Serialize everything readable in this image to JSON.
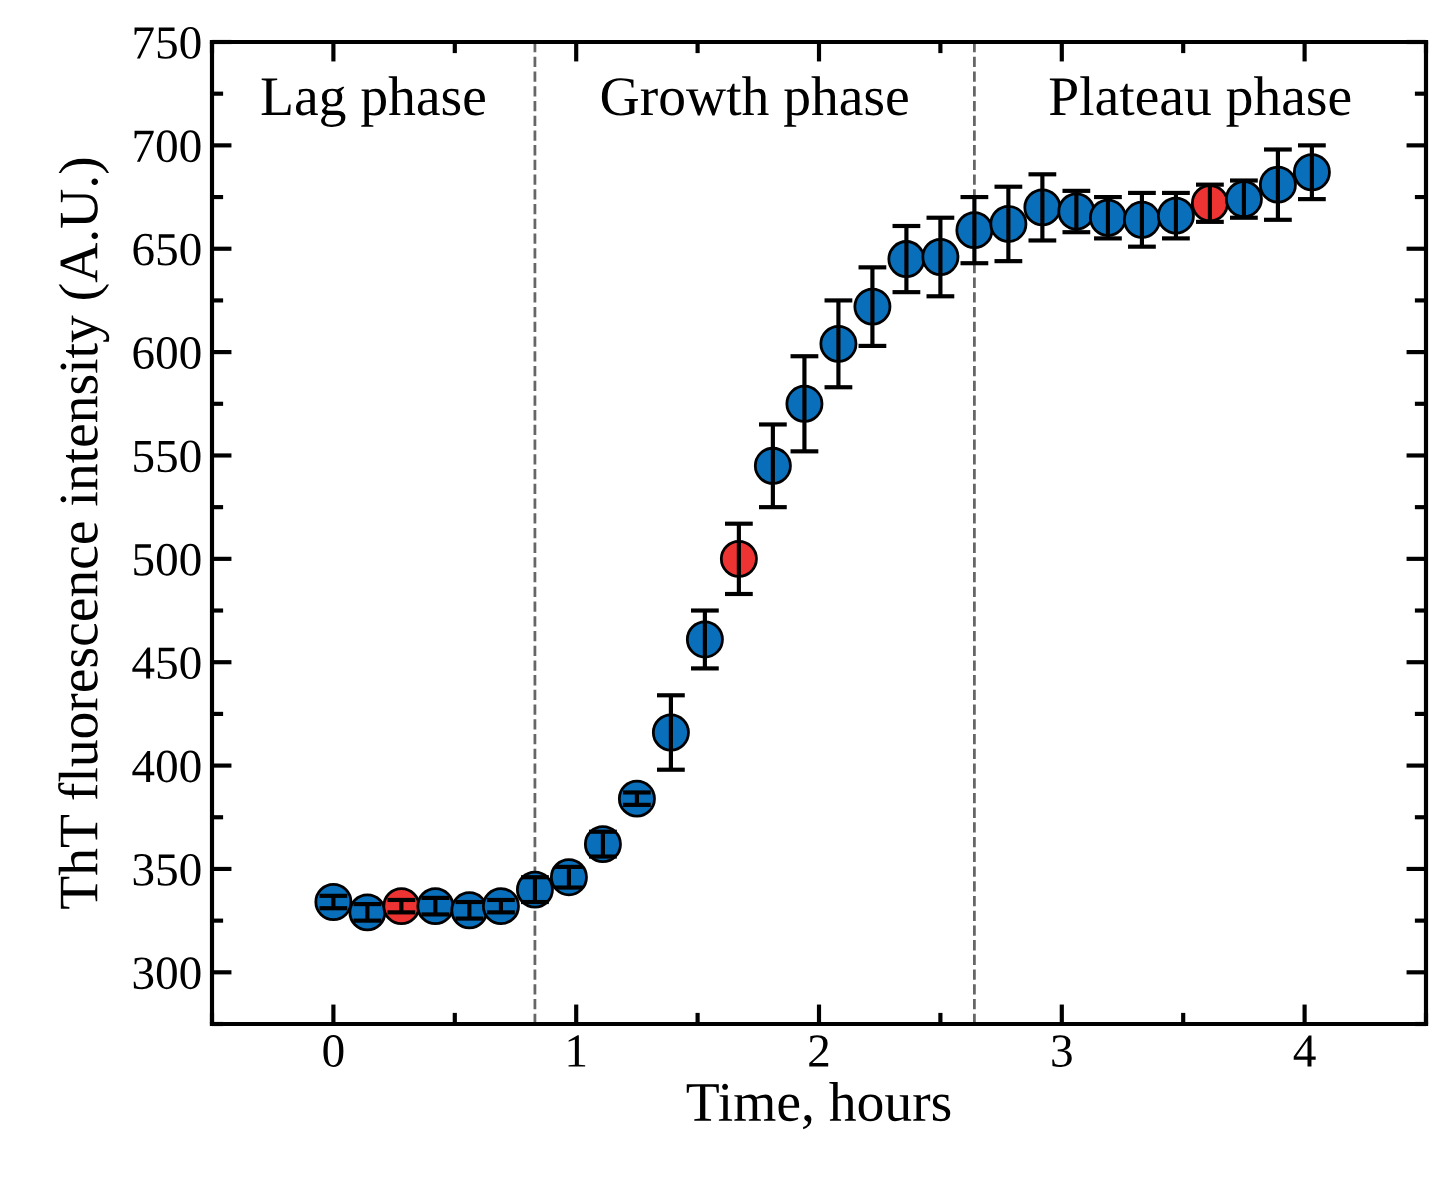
{
  "chart_data": {
    "type": "scatter",
    "xlabel": "Time, hours",
    "ylabel": "ThT fluorescence intensity (A.U.)",
    "x": [
      0,
      0.14,
      0.28,
      0.42,
      0.56,
      0.69,
      0.83,
      0.97,
      1.11,
      1.25,
      1.39,
      1.53,
      1.67,
      1.81,
      1.94,
      2.08,
      2.22,
      2.36,
      2.5,
      2.64,
      2.78,
      2.92,
      3.06,
      3.19,
      3.33,
      3.47,
      3.61,
      3.75,
      3.89,
      4.03
    ],
    "values": [
      334,
      329,
      332,
      332,
      330,
      332,
      340,
      346,
      362,
      384,
      416,
      461,
      500,
      545,
      575,
      604,
      622,
      645,
      646,
      659,
      662,
      670,
      668,
      665,
      664,
      666,
      672,
      674,
      681,
      687
    ],
    "errors": [
      3,
      4,
      3,
      4,
      4,
      3,
      6,
      5,
      6,
      3,
      18,
      14,
      17,
      20,
      23,
      21,
      19,
      16,
      19,
      16,
      18,
      16,
      10,
      10,
      13,
      11,
      9,
      9,
      17,
      13
    ],
    "colors": [
      "#0a6fba",
      "#0a6fba",
      "#ee3333",
      "#0a6fba",
      "#0a6fba",
      "#0a6fba",
      "#0a6fba",
      "#0a6fba",
      "#0a6fba",
      "#0a6fba",
      "#0a6fba",
      "#0a6fba",
      "#ee3333",
      "#0a6fba",
      "#0a6fba",
      "#0a6fba",
      "#0a6fba",
      "#0a6fba",
      "#0a6fba",
      "#0a6fba",
      "#0a6fba",
      "#0a6fba",
      "#0a6fba",
      "#0a6fba",
      "#0a6fba",
      "#0a6fba",
      "#ee3333",
      "#0a6fba",
      "#0a6fba",
      "#0a6fba"
    ],
    "marker": "circle",
    "xlim": [
      -0.5,
      4.5
    ],
    "xticks": [
      {
        "value": -0.5,
        "label": null
      },
      0,
      {
        "value": 0.5,
        "label": null
      },
      1,
      {
        "value": 1.5,
        "label": null
      },
      2,
      {
        "value": 2.5,
        "label": null
      },
      3,
      {
        "value": 3.5,
        "label": null
      },
      4,
      {
        "value": 4.5,
        "label": null
      }
    ],
    "ylim": [
      275,
      750
    ],
    "yticks": [
      {
        "value": 275,
        "label": null
      },
      300,
      {
        "value": 325,
        "label": null
      },
      350,
      {
        "value": 375,
        "label": null
      },
      400,
      {
        "value": 425,
        "label": null
      },
      450,
      {
        "value": 475,
        "label": null
      },
      500,
      {
        "value": 525,
        "label": null
      },
      550,
      {
        "value": 575,
        "label": null
      },
      600,
      {
        "value": 625,
        "label": null
      },
      650,
      {
        "value": 675,
        "label": null
      },
      700,
      {
        "value": 725,
        "label": null
      },
      750
    ],
    "ref_lines": [
      {
        "axis": "x",
        "value": 0.83,
        "color": "#666666",
        "line_style": "dashed"
      },
      {
        "axis": "x",
        "value": 2.64,
        "color": "#666666",
        "line_style": "dashed"
      }
    ],
    "annotations": [
      "Lag phase",
      "Growth phase",
      "Plateau phase"
    ],
    "grid": false
  }
}
